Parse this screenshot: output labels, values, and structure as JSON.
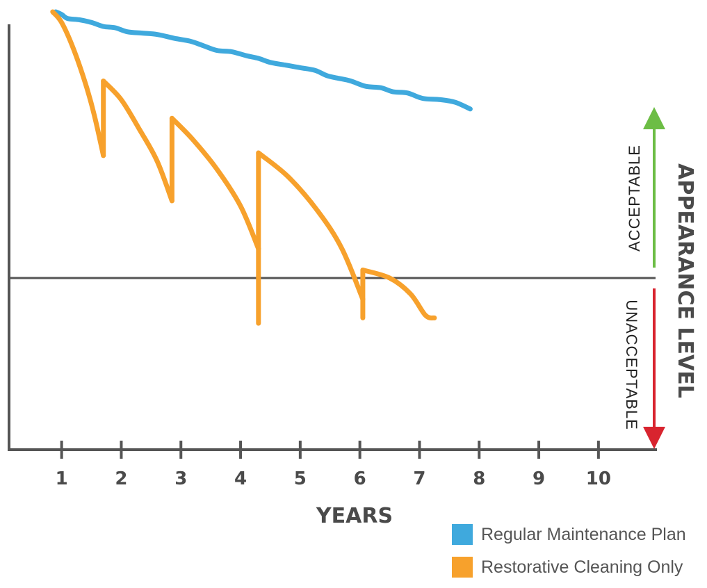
{
  "chart_data": {
    "type": "line",
    "xlabel": "YEARS",
    "ylabel": "APPEARANCE LEVEL",
    "x_ticks": [
      "1",
      "2",
      "3",
      "4",
      "5",
      "6",
      "7",
      "8",
      "9",
      "10"
    ],
    "xlim": [
      0.1,
      11
    ],
    "threshold_labels": {
      "above": "ACCEPTABLE",
      "below": "UNACCEPTABLE"
    },
    "grid": false,
    "legend_position": "bottom-right",
    "series": [
      {
        "name": "Regular Maintenance Plan",
        "color": "#3fa9dd",
        "points": [
          [
            0.9,
            100
          ],
          [
            1.0,
            99
          ],
          [
            1.1,
            97.5
          ],
          [
            1.3,
            97
          ],
          [
            1.5,
            96
          ],
          [
            1.7,
            94.5
          ],
          [
            1.9,
            94
          ],
          [
            2.1,
            92.5
          ],
          [
            2.35,
            92
          ],
          [
            2.6,
            91.5
          ],
          [
            2.9,
            90
          ],
          [
            3.15,
            89
          ],
          [
            3.35,
            87.5
          ],
          [
            3.6,
            85.5
          ],
          [
            3.85,
            85
          ],
          [
            4.1,
            83.5
          ],
          [
            4.3,
            82.5
          ],
          [
            4.5,
            81
          ],
          [
            4.75,
            80
          ],
          [
            5.0,
            79
          ],
          [
            5.25,
            78
          ],
          [
            5.45,
            76
          ],
          [
            5.65,
            75
          ],
          [
            5.85,
            74
          ],
          [
            6.1,
            72
          ],
          [
            6.35,
            71.5
          ],
          [
            6.55,
            70
          ],
          [
            6.8,
            69.5
          ],
          [
            7.05,
            67.5
          ],
          [
            7.35,
            67
          ],
          [
            7.6,
            66
          ],
          [
            7.85,
            63.5
          ]
        ]
      },
      {
        "name": "Restorative Cleaning Only",
        "color": "#f7a12c",
        "segments": [
          [
            [
              0.85,
              100
            ],
            [
              1.0,
              96
            ],
            [
              1.2,
              86
            ],
            [
              1.4,
              73
            ],
            [
              1.55,
              61
            ],
            [
              1.7,
              46
            ]
          ],
          [
            [
              1.7,
              46
            ],
            [
              1.7,
              74
            ]
          ],
          [
            [
              1.7,
              74
            ],
            [
              2.0,
              67
            ],
            [
              2.3,
              56
            ],
            [
              2.6,
              44
            ],
            [
              2.85,
              29
            ]
          ],
          [
            [
              2.85,
              29
            ],
            [
              2.85,
              60
            ]
          ],
          [
            [
              2.85,
              60
            ],
            [
              3.2,
              52
            ],
            [
              3.6,
              41
            ],
            [
              4.0,
              27
            ],
            [
              4.3,
              11
            ]
          ],
          [
            [
              4.3,
              11
            ],
            [
              4.3,
              -17
            ]
          ],
          [
            [
              4.3,
              11
            ],
            [
              4.3,
              47
            ]
          ],
          [
            [
              4.3,
              47
            ],
            [
              4.8,
              38
            ],
            [
              5.3,
              25
            ],
            [
              5.7,
              11
            ],
            [
              6.05,
              -8
            ]
          ],
          [
            [
              6.05,
              -8
            ],
            [
              6.05,
              -15
            ]
          ],
          [
            [
              6.05,
              -8
            ],
            [
              6.05,
              3
            ]
          ],
          [
            [
              6.05,
              3
            ],
            [
              6.5,
              0
            ],
            [
              6.85,
              -6
            ],
            [
              7.1,
              -14
            ],
            [
              7.25,
              -15
            ]
          ]
        ]
      }
    ]
  }
}
